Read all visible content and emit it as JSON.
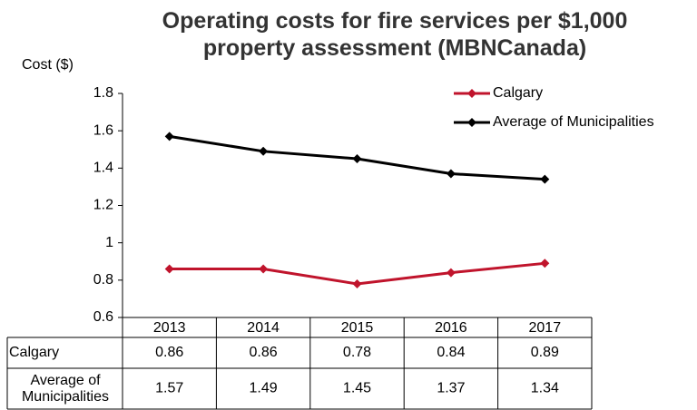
{
  "chart_data": {
    "type": "line",
    "title": "Operating costs for fire services per $1,000 property assessment (MBNCanada)",
    "y_label": "Cost ($)",
    "categories": [
      "2013",
      "2014",
      "2015",
      "2016",
      "2017"
    ],
    "series": [
      {
        "name": "Calgary",
        "color": "#c0142c",
        "values": [
          0.86,
          0.86,
          0.78,
          0.84,
          0.89
        ]
      },
      {
        "name": "Average of Municipalities",
        "color": "#000000",
        "values": [
          1.57,
          1.49,
          1.45,
          1.37,
          1.34
        ]
      }
    ],
    "ylim": [
      0.6,
      1.8
    ],
    "yticks": [
      0.6,
      0.8,
      1,
      1.2,
      1.4,
      1.6,
      1.8
    ],
    "grid": false,
    "legend": "upper right",
    "data_table": true
  }
}
